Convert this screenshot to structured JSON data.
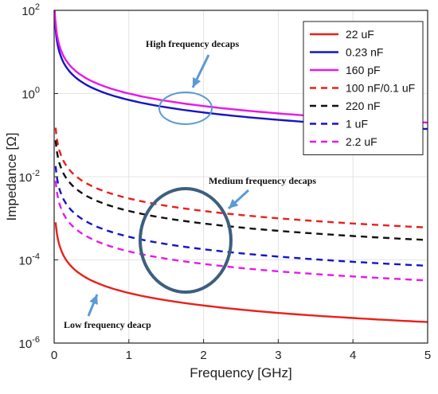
{
  "chart_data": {
    "type": "line",
    "xlabel": "Frequency [GHz]",
    "ylabel": "Impedance [Ω]",
    "xlim": [
      0,
      5
    ],
    "ylim": [
      1e-06,
      100
    ],
    "yscale": "log",
    "grid": true,
    "legend_position": "top-right",
    "x_ticks": [
      "0",
      "1",
      "2",
      "3",
      "4",
      "5"
    ],
    "y_ticks": [
      {
        "value": 1e-06,
        "base": "10",
        "exp": "-6"
      },
      {
        "value": 0.0001,
        "base": "10",
        "exp": "-4"
      },
      {
        "value": 0.01,
        "base": "10",
        "exp": "-2"
      },
      {
        "value": 1,
        "base": "10",
        "exp": "0"
      },
      {
        "value": 100,
        "base": "10",
        "exp": "2"
      }
    ],
    "series": [
      {
        "name": "22 uF",
        "color": "#e8211a",
        "style": "solid",
        "x": [
          0.02,
          0.1,
          0.2,
          0.5,
          1,
          2,
          3,
          4,
          5
        ],
        "y": [
          0.0008,
          0.00016,
          8e-05,
          3.2e-05,
          1.6e-05,
          8e-06,
          5.3e-06,
          4e-06,
          3.2e-06
        ]
      },
      {
        "name": "0.23 nF",
        "color": "#1414c8",
        "style": "solid",
        "x": [
          0.006,
          0.02,
          0.1,
          0.2,
          0.5,
          1,
          2,
          3,
          4,
          5
        ],
        "y": [
          100,
          35,
          7,
          3.5,
          1.4,
          0.7,
          0.35,
          0.233,
          0.175,
          0.14
        ]
      },
      {
        "name": "160 pF",
        "color": "#e818e8",
        "style": "solid",
        "x": [
          0.008,
          0.02,
          0.1,
          0.2,
          0.5,
          1,
          2,
          3,
          4,
          5
        ],
        "y": [
          100,
          50,
          10,
          5,
          2,
          1,
          0.5,
          0.333,
          0.25,
          0.2
        ]
      },
      {
        "name": "100 nF/0.1 uF",
        "color": "#e8211a",
        "style": "dashed",
        "x": [
          0.02,
          0.1,
          0.2,
          0.5,
          1,
          2,
          3,
          4,
          5
        ],
        "y": [
          0.15,
          0.03,
          0.015,
          0.006,
          0.003,
          0.0015,
          0.001,
          0.00075,
          0.0006
        ]
      },
      {
        "name": "220 nF",
        "color": "#111111",
        "style": "dashed",
        "x": [
          0.02,
          0.1,
          0.2,
          0.5,
          1,
          2,
          3,
          4,
          5
        ],
        "y": [
          0.075,
          0.015,
          0.0075,
          0.003,
          0.0015,
          0.00075,
          0.0005,
          0.000375,
          0.0003
        ]
      },
      {
        "name": "1 uF",
        "color": "#1414c8",
        "style": "dashed",
        "x": [
          0.02,
          0.1,
          0.2,
          0.5,
          1,
          2,
          3,
          4,
          5
        ],
        "y": [
          0.018,
          0.0036,
          0.0018,
          0.00072,
          0.00036,
          0.00018,
          0.00012,
          9e-05,
          7.2e-05
        ]
      },
      {
        "name": "2.2 uF",
        "color": "#e818e8",
        "style": "dashed",
        "x": [
          0.02,
          0.1,
          0.2,
          0.5,
          1,
          2,
          3,
          4,
          5
        ],
        "y": [
          0.008,
          0.0016,
          0.0008,
          0.00032,
          0.00016,
          8e-05,
          5.3e-05,
          4e-05,
          3.2e-05
        ]
      }
    ],
    "annotations": [
      {
        "text": "High frequency decaps"
      },
      {
        "text": "Medium frequency decaps"
      },
      {
        "text": "Low frequency deacp"
      }
    ]
  }
}
